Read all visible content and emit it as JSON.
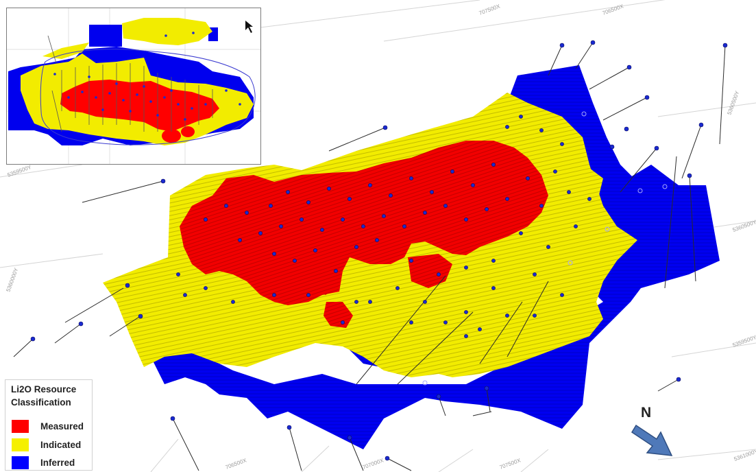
{
  "north_arrow": {
    "label": "N"
  },
  "legend": {
    "title": "Li2O Resource Classification",
    "items": [
      {
        "label": "Measured",
        "color": "#ff0000"
      },
      {
        "label": "Indicated",
        "color": "#f5f000"
      },
      {
        "label": "Inferred",
        "color": "#0000ff"
      }
    ]
  },
  "grid_labels": [
    "707500X",
    "706500X",
    "5360500Y",
    "5360000Y",
    "5359500Y",
    "5361000Y",
    "5360500Y",
    "706500X",
    "707000X",
    "707500X",
    "5359500Y"
  ],
  "colors": {
    "measured": "#ff0000",
    "indicated": "#f5f000",
    "inferred": "#0000ff",
    "drillhole": "#2a2a2a",
    "collar": "#1a2ad0"
  }
}
